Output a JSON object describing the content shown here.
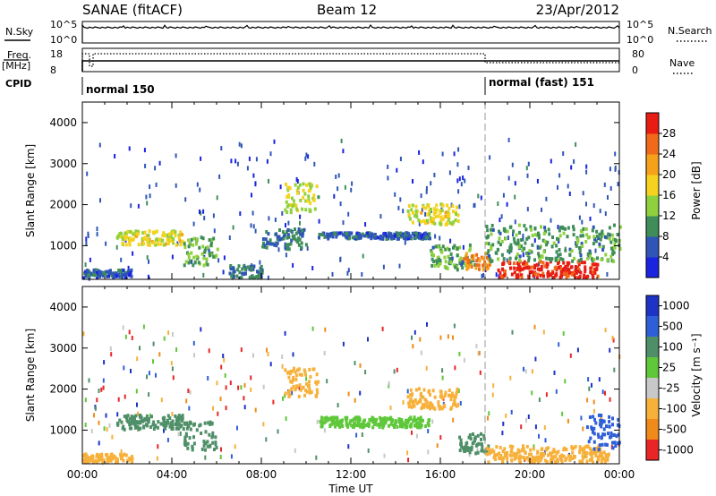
{
  "header": {
    "station": "SANAE (fitACF)",
    "beam": "Beam 12",
    "date": "23/Apr/2012"
  },
  "panels": {
    "nsky_label": "N.Sky",
    "nsky_ticks": [
      "10^5",
      "10^0"
    ],
    "nsearch_label": "N.Search",
    "nsearch_ticks": [
      "10^5",
      "10^0"
    ],
    "freq_label": "Freq.",
    "freq_unit": "[MHz]",
    "freq_ticks": [
      "18",
      "8"
    ],
    "nave_label": "Nave",
    "nave_ticks": [
      "80",
      "0"
    ],
    "cpid_label": "CPID",
    "cpid_modes": [
      "normal 150",
      "normal (fast) 151"
    ]
  },
  "chart_data": [
    {
      "type": "heatmap",
      "name": "power",
      "ylabel": "Slant Range [km]",
      "xlabel": "",
      "y_ticks": [
        "1000",
        "2000",
        "3000",
        "4000"
      ],
      "ylim": [
        180,
        4500
      ],
      "xlim": [
        0,
        24
      ],
      "colorbar": {
        "label": "Power [dB]",
        "ticks": [
          "4",
          "8",
          "12",
          "16",
          "20",
          "24",
          "28"
        ],
        "range": [
          0,
          30
        ]
      },
      "regions": [
        {
          "x": [
            0.0,
            2.2
          ],
          "y": [
            200,
            400
          ],
          "value": 6
        },
        {
          "x": [
            1.5,
            4.5
          ],
          "y": [
            1000,
            1350
          ],
          "value": 16
        },
        {
          "x": [
            4.5,
            6.0
          ],
          "y": [
            500,
            1200
          ],
          "value": 12
        },
        {
          "x": [
            6.5,
            8.0
          ],
          "y": [
            200,
            500
          ],
          "value": 8
        },
        {
          "x": [
            8.0,
            10.0
          ],
          "y": [
            900,
            1400
          ],
          "value": 8
        },
        {
          "x": [
            9.0,
            10.5
          ],
          "y": [
            1800,
            2500
          ],
          "value": 14
        },
        {
          "x": [
            10.5,
            15.5
          ],
          "y": [
            1150,
            1300
          ],
          "value": 6
        },
        {
          "x": [
            14.5,
            16.8
          ],
          "y": [
            1500,
            2000
          ],
          "value": 16
        },
        {
          "x": [
            15.5,
            17.5
          ],
          "y": [
            400,
            1000
          ],
          "value": 10
        },
        {
          "x": [
            17.0,
            18.2
          ],
          "y": [
            400,
            800
          ],
          "value": 22
        },
        {
          "x": [
            18.5,
            23.0
          ],
          "y": [
            200,
            600
          ],
          "value": 28
        },
        {
          "x": [
            18.0,
            24.0
          ],
          "y": [
            600,
            1500
          ],
          "value": 10
        }
      ]
    },
    {
      "type": "heatmap",
      "name": "velocity",
      "ylabel": "Slant Range [km]",
      "xlabel": "Time UT",
      "x_ticks": [
        "00:00",
        "04:00",
        "08:00",
        "12:00",
        "16:00",
        "20:00",
        "00:00"
      ],
      "y_ticks": [
        "1000",
        "2000",
        "3000",
        "4000"
      ],
      "ylim": [
        180,
        4500
      ],
      "xlim": [
        0,
        24
      ],
      "colorbar": {
        "label": "Velocity [m s⁻¹]",
        "ticks": [
          "1000",
          "500",
          "100",
          "25",
          "-25",
          "-100",
          "-500",
          "-1000"
        ],
        "colors": [
          "#1c33c6",
          "#2f5fd8",
          "#4e8f68",
          "#5fc73a",
          "#c8c8c8",
          "#f7b03a",
          "#f08a1a",
          "#ea2525"
        ]
      },
      "regions": [
        {
          "x": [
            0.0,
            2.2
          ],
          "y": [
            200,
            400
          ],
          "value": "-100"
        },
        {
          "x": [
            1.5,
            4.5
          ],
          "y": [
            1000,
            1350
          ],
          "value": "100"
        },
        {
          "x": [
            4.5,
            6.0
          ],
          "y": [
            500,
            1200
          ],
          "value": "100"
        },
        {
          "x": [
            9.0,
            10.5
          ],
          "y": [
            1800,
            2500
          ],
          "value": "-100"
        },
        {
          "x": [
            10.5,
            15.5
          ],
          "y": [
            1050,
            1300
          ],
          "value": "25"
        },
        {
          "x": [
            14.5,
            16.8
          ],
          "y": [
            1500,
            2000
          ],
          "value": "-100"
        },
        {
          "x": [
            16.8,
            18.2
          ],
          "y": [
            400,
            900
          ],
          "value": "100"
        },
        {
          "x": [
            18.0,
            23.5
          ],
          "y": [
            200,
            600
          ],
          "value": "-100"
        },
        {
          "x": [
            22.5,
            24.0
          ],
          "y": [
            500,
            1400
          ],
          "value": "500"
        }
      ]
    }
  ],
  "colors": {
    "power_scale": [
      "#1a24e0",
      "#2f56b7",
      "#3f8e5a",
      "#8fd13c",
      "#f5d21e",
      "#f5a21a",
      "#f06a1a",
      "#e81c12"
    ]
  }
}
